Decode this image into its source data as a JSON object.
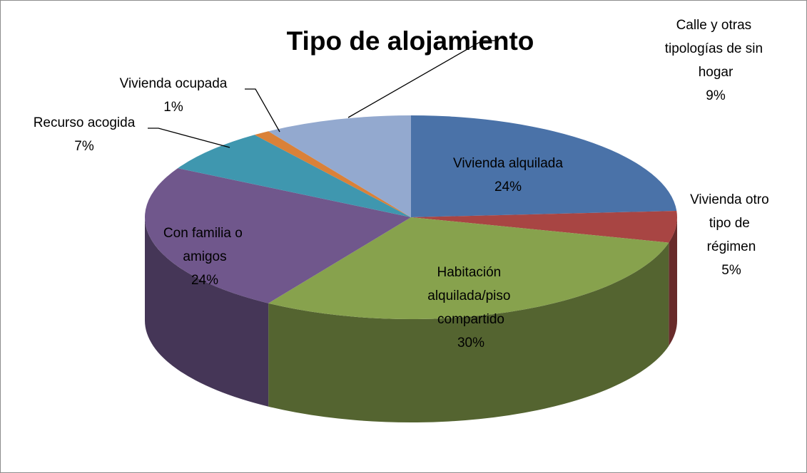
{
  "chart_data": {
    "type": "pie",
    "title": "Tipo de alojamiento",
    "categories": [
      "Vivienda alquilada",
      "Vivienda otro tipo de régimen",
      "Habitación alquilada/piso compartido",
      "Con familia o amigos",
      "Recurso acogida",
      "Vivienda ocupada",
      "Calle y otras tipologías de sin hogar"
    ],
    "values": [
      24,
      5,
      30,
      24,
      7,
      1,
      9
    ],
    "value_labels": [
      "24%",
      "5%",
      "30%",
      "24%",
      "7%",
      "1%",
      "9%"
    ],
    "colors": [
      "#4a72a8",
      "#a84543",
      "#87a24d",
      "#70578c",
      "#3f97af",
      "#da8138",
      "#93a9cf"
    ]
  }
}
